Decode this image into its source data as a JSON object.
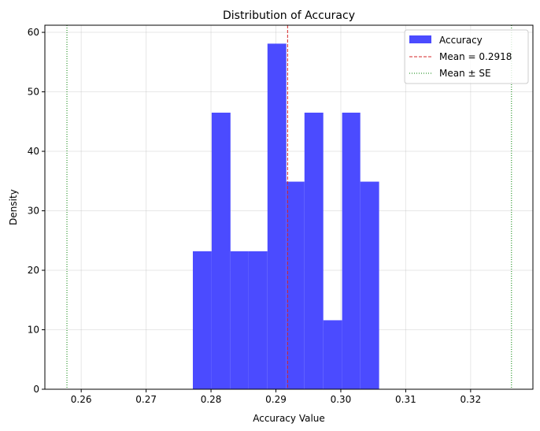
{
  "chart_data": {
    "type": "bar",
    "title": "Distribution of Accuracy",
    "xlabel": "Accuracy Value",
    "ylabel": "Density",
    "xlim": [
      0.2544,
      0.3296
    ],
    "ylim": [
      0,
      61.2
    ],
    "xticks": [
      "0.26",
      "0.27",
      "0.28",
      "0.29",
      "0.30",
      "0.31",
      "0.32"
    ],
    "yticks": [
      "0",
      "10",
      "20",
      "30",
      "40",
      "50",
      "60"
    ],
    "grid": true,
    "legend_placement": "top-right",
    "bin_edges": [
      0.2772,
      0.2801,
      0.283,
      0.2858,
      0.2887,
      0.2916,
      0.2944,
      0.2973,
      0.3002,
      0.303,
      0.3059
    ],
    "values": [
      23.2,
      46.5,
      23.2,
      23.2,
      58.1,
      34.9,
      46.5,
      11.6,
      46.5,
      34.9
    ],
    "mean": 0.2918,
    "mean_minus_se": 0.2578,
    "mean_plus_se": 0.3263,
    "legend": [
      "Accuracy",
      "Mean = 0.2918",
      "Mean ± SE"
    ],
    "colors": {
      "bars": "#4b4bff",
      "mean": "#d62728",
      "se": "#008000"
    }
  }
}
